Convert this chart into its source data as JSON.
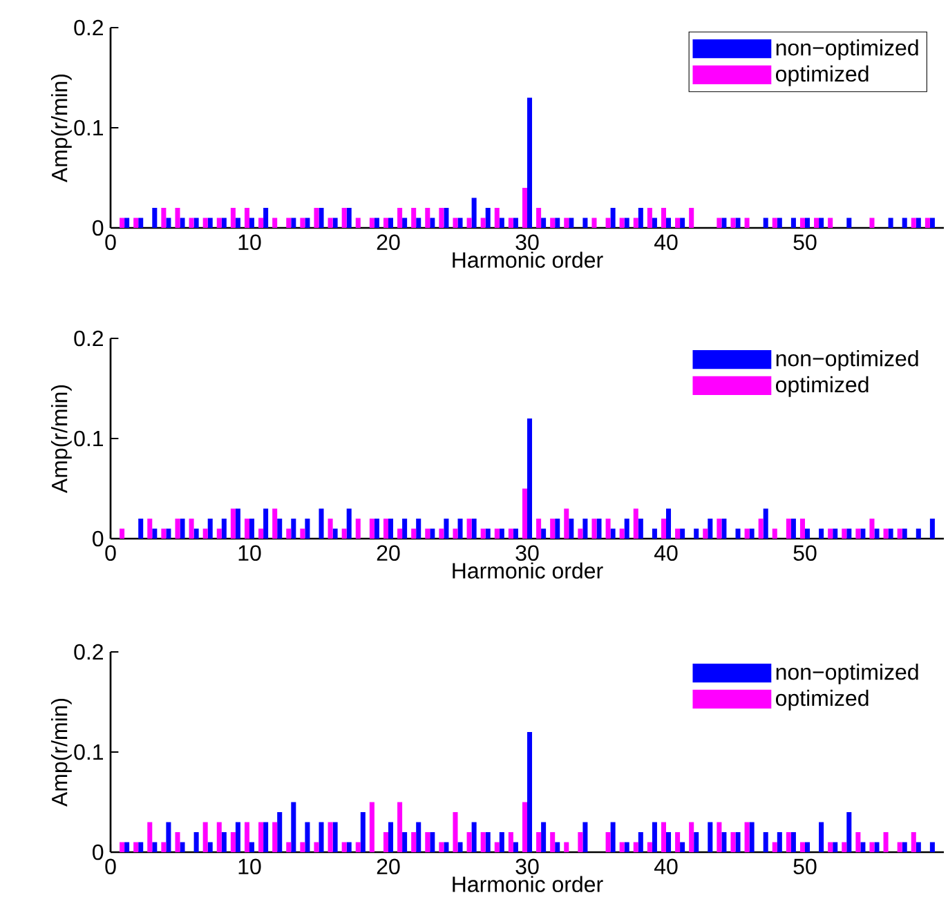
{
  "chart_data": [
    {
      "type": "bar",
      "xlabel": "Harmonic order",
      "ylabel": "Amp(r/min)",
      "x": [
        1,
        2,
        3,
        4,
        5,
        6,
        7,
        8,
        9,
        10,
        11,
        12,
        13,
        14,
        15,
        16,
        17,
        18,
        19,
        20,
        21,
        22,
        23,
        24,
        25,
        26,
        27,
        28,
        29,
        30,
        31,
        32,
        33,
        34,
        35,
        36,
        37,
        38,
        39,
        40,
        41,
        42,
        43,
        44,
        45,
        46,
        47,
        48,
        49,
        50,
        51,
        52,
        53,
        54,
        55,
        56,
        57,
        58,
        59
      ],
      "xlim": [
        0,
        60
      ],
      "xticks": [
        0,
        10,
        20,
        30,
        40,
        50
      ],
      "ylim": [
        0,
        0.2
      ],
      "yticks": [
        0,
        0.1,
        0.2
      ],
      "legend": "top right",
      "series": [
        {
          "name": "non−optimized",
          "color": "#0000ff",
          "values": [
            0.01,
            0.01,
            0.02,
            0.01,
            0.01,
            0.01,
            0.01,
            0.01,
            0.01,
            0.01,
            0.02,
            0,
            0.01,
            0.01,
            0.02,
            0.01,
            0.02,
            0,
            0.01,
            0.01,
            0.01,
            0.01,
            0.01,
            0.02,
            0.01,
            0.03,
            0.02,
            0.01,
            0.01,
            0.13,
            0.01,
            0.01,
            0.01,
            0.01,
            0,
            0.02,
            0.01,
            0.02,
            0.01,
            0.01,
            0.01,
            0,
            0,
            0.01,
            0.01,
            0,
            0.01,
            0.01,
            0.01,
            0.01,
            0.01,
            0,
            0.01,
            0,
            0,
            0.01,
            0.01,
            0.01,
            0.01
          ]
        },
        {
          "name": "optimized",
          "color": "#ff00ff",
          "values": [
            0.01,
            0.01,
            0,
            0.02,
            0.02,
            0.01,
            0.01,
            0.01,
            0.02,
            0.02,
            0.01,
            0.01,
            0.01,
            0.01,
            0.02,
            0.01,
            0.02,
            0.01,
            0.01,
            0.01,
            0.02,
            0.02,
            0.02,
            0.02,
            0.01,
            0.01,
            0.01,
            0.02,
            0.01,
            0.04,
            0.02,
            0.01,
            0.01,
            0,
            0.01,
            0.01,
            0.01,
            0.01,
            0.02,
            0.02,
            0.01,
            0.02,
            0,
            0.01,
            0.01,
            0.01,
            0,
            0.01,
            0,
            0.01,
            0.01,
            0.01,
            0,
            0,
            0.01,
            0,
            0,
            0.01,
            0.01
          ]
        }
      ]
    },
    {
      "type": "bar",
      "xlabel": "Harmonic order",
      "ylabel": "Amp(r/min)",
      "x": [
        1,
        2,
        3,
        4,
        5,
        6,
        7,
        8,
        9,
        10,
        11,
        12,
        13,
        14,
        15,
        16,
        17,
        18,
        19,
        20,
        21,
        22,
        23,
        24,
        25,
        26,
        27,
        28,
        29,
        30,
        31,
        32,
        33,
        34,
        35,
        36,
        37,
        38,
        39,
        40,
        41,
        42,
        43,
        44,
        45,
        46,
        47,
        48,
        49,
        50,
        51,
        52,
        53,
        54,
        55,
        56,
        57,
        58,
        59
      ],
      "xlim": [
        0,
        60
      ],
      "xticks": [
        0,
        10,
        20,
        30,
        40,
        50
      ],
      "ylim": [
        0,
        0.2
      ],
      "yticks": [
        0,
        0.1,
        0.2
      ],
      "legend": "top right",
      "series": [
        {
          "name": "non−optimized",
          "color": "#0000ff",
          "values": [
            0,
            0.02,
            0.01,
            0.01,
            0.02,
            0.01,
            0.02,
            0.02,
            0.03,
            0.02,
            0.03,
            0.02,
            0.02,
            0.02,
            0.03,
            0.01,
            0.03,
            0,
            0.02,
            0.02,
            0.02,
            0.02,
            0.01,
            0.02,
            0.02,
            0.02,
            0.01,
            0.01,
            0.01,
            0.12,
            0.01,
            0.02,
            0.02,
            0.02,
            0.02,
            0.01,
            0.02,
            0.02,
            0.01,
            0.03,
            0.01,
            0.01,
            0.02,
            0.02,
            0.01,
            0.01,
            0.03,
            0,
            0.02,
            0.01,
            0.01,
            0.01,
            0.01,
            0.01,
            0.01,
            0.01,
            0.01,
            0.01,
            0.02
          ]
        },
        {
          "name": "optimized",
          "color": "#ff00ff",
          "values": [
            0.01,
            0,
            0.02,
            0.01,
            0.02,
            0.02,
            0.01,
            0.01,
            0.03,
            0.02,
            0.01,
            0.03,
            0.01,
            0.01,
            0,
            0.02,
            0.01,
            0.02,
            0.02,
            0.02,
            0.01,
            0.01,
            0.01,
            0.01,
            0.01,
            0.02,
            0.01,
            0.01,
            0.01,
            0.05,
            0.02,
            0.02,
            0.03,
            0.01,
            0.02,
            0.02,
            0.01,
            0.03,
            0,
            0.02,
            0.01,
            0,
            0.01,
            0.02,
            0,
            0.01,
            0.02,
            0.01,
            0.02,
            0.02,
            0,
            0.01,
            0.01,
            0.01,
            0.02,
            0.01,
            0.01,
            0,
            0
          ]
        }
      ]
    },
    {
      "type": "bar",
      "xlabel": "Harmonic order",
      "ylabel": "Amp(r/min)",
      "x": [
        1,
        2,
        3,
        4,
        5,
        6,
        7,
        8,
        9,
        10,
        11,
        12,
        13,
        14,
        15,
        16,
        17,
        18,
        19,
        20,
        21,
        22,
        23,
        24,
        25,
        26,
        27,
        28,
        29,
        30,
        31,
        32,
        33,
        34,
        35,
        36,
        37,
        38,
        39,
        40,
        41,
        42,
        43,
        44,
        45,
        46,
        47,
        48,
        49,
        50,
        51,
        52,
        53,
        54,
        55,
        56,
        57,
        58,
        59
      ],
      "xlim": [
        0,
        60
      ],
      "xticks": [
        0,
        10,
        20,
        30,
        40,
        50
      ],
      "ylim": [
        0,
        0.2
      ],
      "yticks": [
        0,
        0.1,
        0.2
      ],
      "legend": "top right",
      "series": [
        {
          "name": "non−optimized",
          "color": "#0000ff",
          "values": [
            0.01,
            0.01,
            0.01,
            0.03,
            0.01,
            0.02,
            0.01,
            0.02,
            0.03,
            0.01,
            0.03,
            0.04,
            0.05,
            0.03,
            0.03,
            0.03,
            0.01,
            0.04,
            0,
            0.03,
            0.02,
            0.03,
            0.02,
            0.01,
            0.01,
            0.03,
            0.02,
            0.02,
            0.01,
            0.12,
            0.03,
            0.01,
            0,
            0.03,
            0,
            0.03,
            0.01,
            0.02,
            0.03,
            0.02,
            0.01,
            0.02,
            0.03,
            0.02,
            0.02,
            0.03,
            0.02,
            0.02,
            0.02,
            0.01,
            0.03,
            0.01,
            0.04,
            0.01,
            0.01,
            0,
            0.01,
            0.01,
            0.01
          ]
        },
        {
          "name": "optimized",
          "color": "#ff00ff",
          "values": [
            0.01,
            0.01,
            0.03,
            0.01,
            0.02,
            0,
            0.03,
            0.03,
            0.02,
            0.03,
            0.03,
            0.03,
            0.01,
            0.01,
            0.01,
            0.03,
            0.01,
            0.01,
            0.05,
            0.02,
            0.05,
            0.02,
            0.02,
            0.01,
            0.04,
            0.02,
            0.02,
            0.01,
            0.02,
            0.05,
            0.02,
            0.02,
            0.01,
            0.02,
            0,
            0.02,
            0.01,
            0.01,
            0.01,
            0.03,
            0.02,
            0.03,
            0,
            0.03,
            0.02,
            0.03,
            0,
            0.01,
            0.02,
            0.01,
            0,
            0.01,
            0.01,
            0.02,
            0.01,
            0.02,
            0.01,
            0.02,
            0
          ]
        }
      ]
    }
  ]
}
